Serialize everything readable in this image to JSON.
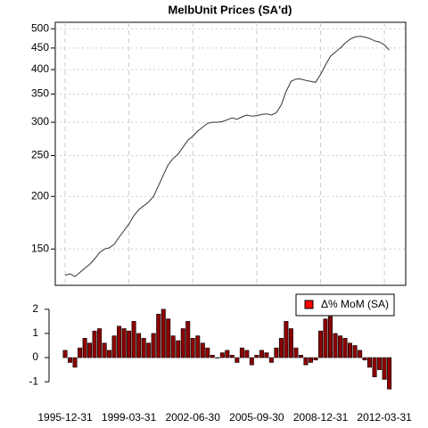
{
  "chart_data": [
    {
      "type": "line",
      "title": "MelbUnit Prices (SA'd)",
      "log_scale": true,
      "grid": true,
      "color": "#333333",
      "x": [
        "1995-12-31",
        "1996-03-31",
        "1996-06-30",
        "1996-09-30",
        "1996-12-31",
        "1997-03-31",
        "1997-06-30",
        "1997-09-30",
        "1997-12-31",
        "1998-03-31",
        "1998-06-30",
        "1998-09-30",
        "1998-12-31",
        "1999-03-31",
        "1999-06-30",
        "1999-09-30",
        "1999-12-31",
        "2000-03-31",
        "2000-06-30",
        "2000-09-30",
        "2000-12-31",
        "2001-03-31",
        "2001-06-30",
        "2001-09-30",
        "2001-12-31",
        "2002-03-31",
        "2002-06-30",
        "2002-09-30",
        "2002-12-31",
        "2003-03-31",
        "2003-06-30",
        "2003-09-30",
        "2003-12-31",
        "2004-03-31",
        "2004-06-30",
        "2004-09-30",
        "2004-12-31",
        "2005-03-31",
        "2005-06-30",
        "2005-09-30",
        "2005-12-31",
        "2006-03-31",
        "2006-06-30",
        "2006-09-30",
        "2006-12-31",
        "2007-03-31",
        "2007-06-30",
        "2007-09-30",
        "2007-12-31",
        "2008-03-31",
        "2008-06-30",
        "2008-09-30",
        "2008-12-31",
        "2009-03-31",
        "2009-06-30",
        "2009-09-30",
        "2009-12-31",
        "2010-03-31",
        "2010-06-30",
        "2010-09-30",
        "2010-12-31",
        "2011-03-31",
        "2011-06-30",
        "2011-09-30",
        "2011-12-31",
        "2012-03-31",
        "2012-06-30"
      ],
      "values": [
        130,
        131,
        129,
        132,
        135,
        138,
        142,
        147,
        150,
        151,
        154,
        160,
        166,
        172,
        180,
        186,
        190,
        194,
        200,
        212,
        225,
        238,
        246,
        252,
        262,
        272,
        278,
        286,
        292,
        298,
        300,
        300,
        301,
        304,
        307,
        305,
        309,
        312,
        310,
        311,
        313,
        314,
        312,
        316,
        330,
        355,
        375,
        380,
        380,
        377,
        375,
        373,
        390,
        410,
        430,
        440,
        450,
        462,
        472,
        478,
        480,
        478,
        474,
        468,
        465,
        458,
        445
      ],
      "xlim": [
        "1995-07-01",
        "2013-05-01"
      ],
      "ylim": [
        123,
        518
      ],
      "yticks": [
        150,
        200,
        250,
        300,
        350,
        400,
        450,
        500
      ]
    },
    {
      "type": "bar",
      "color": "#8b0000",
      "legend_color": "#ff0000",
      "legend": "top-right",
      "series": [
        {
          "name": "Δ% MoM (SA)",
          "values": [
            0.3,
            -0.2,
            -0.4,
            0.4,
            0.8,
            0.6,
            1.1,
            1.2,
            0.6,
            0.3,
            0.9,
            1.3,
            1.2,
            1.1,
            1.5,
            1.0,
            0.8,
            0.6,
            1.0,
            1.8,
            2.0,
            1.6,
            0.9,
            0.7,
            1.2,
            1.5,
            0.8,
            0.9,
            0.6,
            0.4,
            0.1,
            0.0,
            0.2,
            0.3,
            0.1,
            -0.2,
            0.4,
            0.3,
            -0.3,
            0.1,
            0.3,
            0.2,
            -0.2,
            0.4,
            0.8,
            1.5,
            1.2,
            0.4,
            0.1,
            -0.3,
            -0.2,
            -0.1,
            1.1,
            1.6,
            1.7,
            1.0,
            0.9,
            0.8,
            0.6,
            0.5,
            0.3,
            -0.1,
            -0.4,
            -0.8,
            -0.5,
            -0.9,
            -1.3
          ]
        }
      ],
      "ylim": [
        -1.4,
        2.4
      ],
      "yticks": [
        -1,
        0,
        1,
        2
      ],
      "xticks": [
        "1995-12-31",
        "1999-03-31",
        "2002-06-30",
        "2005-09-30",
        "2008-12-31",
        "2012-03-31"
      ]
    }
  ]
}
